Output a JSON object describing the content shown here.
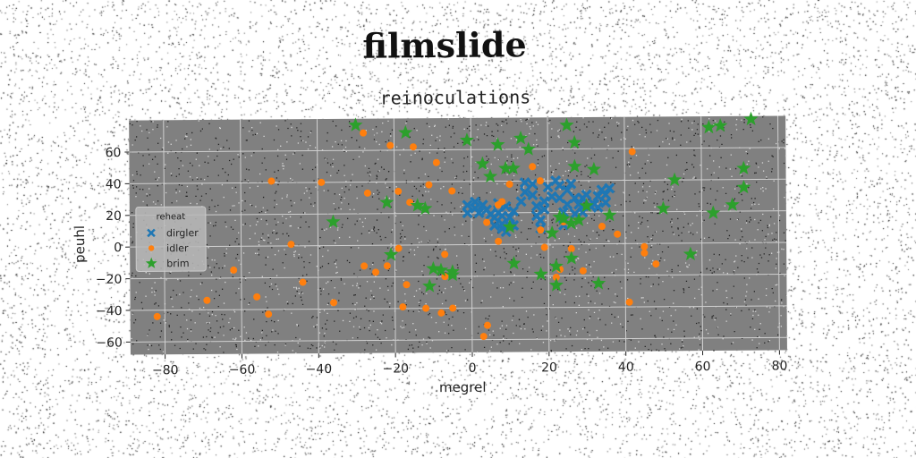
{
  "suptitle": "filmslide",
  "chart_data": {
    "type": "scatter",
    "title": "reinoculations",
    "xlabel": "megrel",
    "ylabel": "peuhl",
    "xlim": [
      -89,
      82
    ],
    "ylim": [
      -68,
      80
    ],
    "xticks": [
      -80,
      -60,
      -40,
      -20,
      0,
      20,
      40,
      60,
      80
    ],
    "yticks": [
      -60,
      -40,
      -20,
      0,
      20,
      40,
      60
    ],
    "grid": true,
    "legend": {
      "title": "reheat",
      "placement": "center-left"
    },
    "colors": {
      "plot_bg": "#808080",
      "dirgler": "#1f77b4",
      "idler": "#ff7f0e",
      "brim": "#2ca02c"
    },
    "series": [
      {
        "name": "dirgler",
        "marker": "X",
        "points": [
          [
            -1,
            25
          ],
          [
            -1,
            20
          ],
          [
            1,
            23
          ],
          [
            1,
            27
          ],
          [
            2,
            20
          ],
          [
            3,
            25
          ],
          [
            4,
            22
          ],
          [
            5,
            19
          ],
          [
            6,
            17
          ],
          [
            6,
            12
          ],
          [
            7,
            26
          ],
          [
            7,
            20
          ],
          [
            8,
            10
          ],
          [
            8,
            13
          ],
          [
            8,
            18
          ],
          [
            9,
            24
          ],
          [
            9,
            8
          ],
          [
            10,
            12
          ],
          [
            10,
            17
          ],
          [
            11,
            21
          ],
          [
            11,
            12
          ],
          [
            13,
            27
          ],
          [
            14,
            33
          ],
          [
            14,
            39
          ],
          [
            16,
            38
          ],
          [
            16,
            31
          ],
          [
            17,
            24
          ],
          [
            17,
            18
          ],
          [
            18,
            10
          ],
          [
            18,
            15
          ],
          [
            19,
            27
          ],
          [
            19,
            22
          ],
          [
            20,
            36
          ],
          [
            21,
            30
          ],
          [
            22,
            40
          ],
          [
            23,
            37
          ],
          [
            23,
            29
          ],
          [
            24,
            20
          ],
          [
            24,
            12
          ],
          [
            25,
            25
          ],
          [
            25,
            34
          ],
          [
            26,
            38
          ],
          [
            27,
            19
          ],
          [
            27,
            29
          ],
          [
            28,
            25
          ],
          [
            29,
            29
          ],
          [
            29,
            20
          ],
          [
            30,
            31
          ],
          [
            31,
            24
          ],
          [
            32,
            25
          ],
          [
            33,
            30
          ],
          [
            33,
            23
          ],
          [
            34,
            34
          ],
          [
            35,
            26
          ],
          [
            35,
            31
          ],
          [
            36,
            35
          ]
        ]
      },
      {
        "name": "idler",
        "marker": "o",
        "points": [
          [
            -82,
            -44
          ],
          [
            -69,
            -34
          ],
          [
            -62,
            -15
          ],
          [
            -56,
            -32
          ],
          [
            -53,
            -43
          ],
          [
            -52,
            41
          ],
          [
            -47,
            1
          ],
          [
            -44,
            -23
          ],
          [
            -39,
            40
          ],
          [
            -36,
            -36
          ],
          [
            -28,
            71
          ],
          [
            -28,
            -13
          ],
          [
            -27,
            33
          ],
          [
            -25,
            -17
          ],
          [
            -22,
            -13
          ],
          [
            -21,
            63
          ],
          [
            -19,
            -2
          ],
          [
            -19,
            34
          ],
          [
            -18,
            -39
          ],
          [
            -17,
            -25
          ],
          [
            -16,
            27
          ],
          [
            -15,
            62
          ],
          [
            -12,
            -40
          ],
          [
            -11,
            38
          ],
          [
            -9,
            52
          ],
          [
            -8,
            -43
          ],
          [
            -7,
            -6
          ],
          [
            -7,
            -20
          ],
          [
            -5,
            -40
          ],
          [
            -5,
            34
          ],
          [
            3,
            -58
          ],
          [
            4,
            -51
          ],
          [
            4,
            14
          ],
          [
            7,
            2
          ],
          [
            7,
            25
          ],
          [
            8,
            27
          ],
          [
            10,
            38
          ],
          [
            16,
            49
          ],
          [
            18,
            9
          ],
          [
            18,
            40
          ],
          [
            19,
            -2
          ],
          [
            22,
            -21
          ],
          [
            23,
            -16
          ],
          [
            24,
            14
          ],
          [
            26,
            -3
          ],
          [
            29,
            -17
          ],
          [
            34,
            11
          ],
          [
            38,
            6
          ],
          [
            41,
            -37
          ],
          [
            42,
            58
          ],
          [
            45,
            -2
          ],
          [
            45,
            -6
          ],
          [
            48,
            -13
          ]
        ]
      },
      {
        "name": "brim",
        "marker": "*",
        "points": [
          [
            -30,
            76
          ],
          [
            -22,
            27
          ],
          [
            -21,
            -6
          ],
          [
            -17,
            71
          ],
          [
            -14,
            25
          ],
          [
            -12,
            23
          ],
          [
            -11,
            -26
          ],
          [
            -10,
            -15
          ],
          [
            -8,
            -16
          ],
          [
            -5,
            -17
          ],
          [
            -5,
            -19
          ],
          [
            -1,
            66
          ],
          [
            3,
            51
          ],
          [
            5,
            43
          ],
          [
            7,
            63
          ],
          [
            9,
            48
          ],
          [
            11,
            48
          ],
          [
            11,
            -12
          ],
          [
            13,
            67
          ],
          [
            15,
            60
          ],
          [
            18,
            -19
          ],
          [
            22,
            -14
          ],
          [
            22,
            -26
          ],
          [
            23,
            17
          ],
          [
            24,
            16
          ],
          [
            25,
            75
          ],
          [
            26,
            13
          ],
          [
            26,
            -9
          ],
          [
            27,
            49
          ],
          [
            27,
            64
          ],
          [
            28,
            15
          ],
          [
            32,
            47
          ],
          [
            33,
            -25
          ],
          [
            36,
            18
          ],
          [
            50,
            22
          ],
          [
            53,
            40
          ],
          [
            57,
            -7
          ],
          [
            62,
            73
          ],
          [
            63,
            19
          ],
          [
            65,
            74
          ],
          [
            68,
            24
          ],
          [
            71,
            35
          ],
          [
            71,
            47
          ],
          [
            73,
            78
          ],
          [
            10,
            11
          ],
          [
            21,
            7
          ],
          [
            30,
            24
          ],
          [
            -36,
            15
          ]
        ]
      }
    ]
  }
}
